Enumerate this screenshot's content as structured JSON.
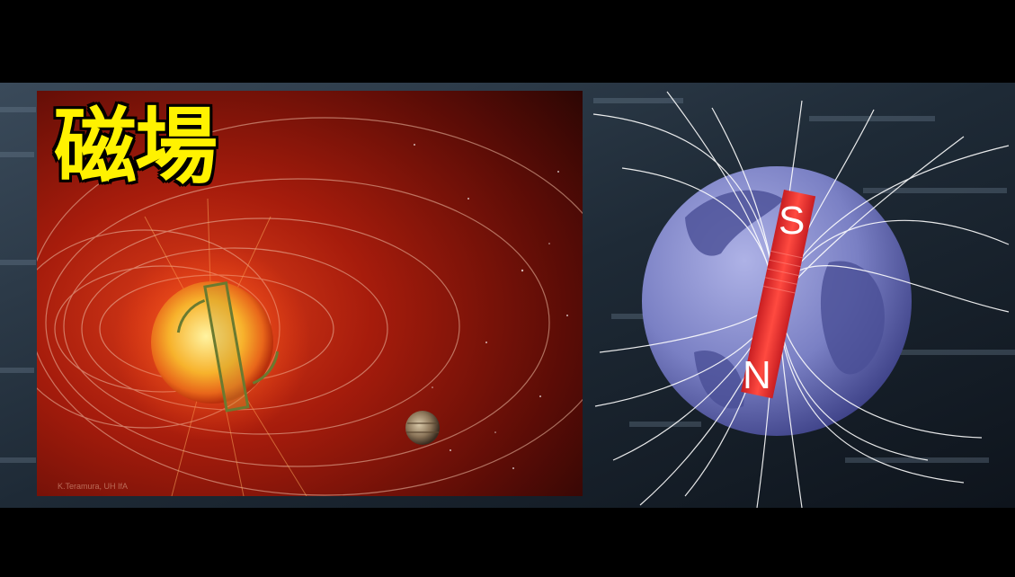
{
  "title": "磁場",
  "credit": "K.Teramura, UH IfA",
  "magnet": {
    "north_label": "N",
    "south_label": "S"
  },
  "colors": {
    "title_text": "#fff200",
    "sun_background": "#7a1208",
    "earth_globe": "#8a8fd0",
    "magnet_red": "#e83030"
  }
}
